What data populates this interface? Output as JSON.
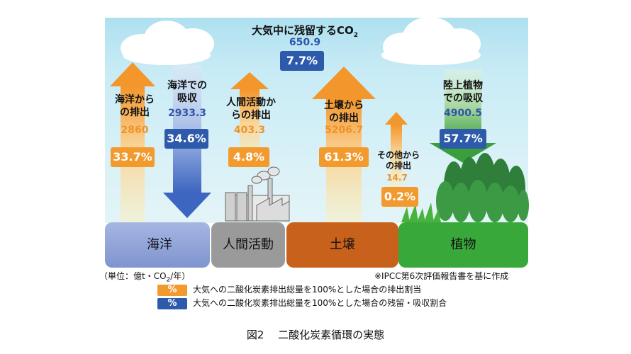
{
  "atmosphere": {
    "label": "大気中に残留するCO",
    "label_sub": "2",
    "value": "650.9",
    "percent": "7.7%"
  },
  "flows": {
    "ocean_emission": {
      "label_lines": [
        "海洋から",
        "の排出"
      ],
      "value": "2860",
      "percent": "33.7%",
      "color": "orange"
    },
    "ocean_absorption": {
      "label_lines": [
        "海洋での",
        "吸収"
      ],
      "value": "2933.3",
      "percent": "34.6%",
      "color": "blue"
    },
    "human_emission": {
      "label_lines": [
        "人間活動か",
        "らの排出"
      ],
      "value": "403.3",
      "percent": "4.8%",
      "color": "orange"
    },
    "soil_emission": {
      "label_lines": [
        "土壌から",
        "の排出"
      ],
      "value": "5206.7",
      "percent": "61.3%",
      "color": "orange"
    },
    "other_emission": {
      "label_lines": [
        "その他から",
        "の排出"
      ],
      "value": "14.7",
      "percent": "0.2%",
      "color": "orange"
    },
    "land_plant_absorption": {
      "label_lines": [
        "陸上植物",
        "での吸収"
      ],
      "value": "4900.5",
      "percent": "57.7%",
      "color": "blue"
    }
  },
  "sources": {
    "ocean": "海洋",
    "human": "人間活動",
    "soil": "土壌",
    "plants": "植物"
  },
  "unit_note": {
    "text_a": "（単位：億t・CO",
    "sub": "2",
    "text_b": "/年）"
  },
  "source_note": "※IPCC第6次評価報告書を基に作成",
  "legend": [
    {
      "swatch": "%",
      "color": "#f29a2e",
      "text": "大気への二酸化炭素排出総量を100%とした場合の排出割当"
    },
    {
      "swatch": "%",
      "color": "#2e5aac",
      "text": "大気への二酸化炭素排出総量を100%とした場合の残留・吸収割合"
    }
  ],
  "caption": "図2　 二酸化炭素循環の実態",
  "colors": {
    "orange": "#f29a2e",
    "blue": "#2e5aac",
    "ocean_box": "#8fa3d6",
    "human_box": "#9a9a9a",
    "soil_box": "#c8611c",
    "plant_box": "#39a83a"
  }
}
